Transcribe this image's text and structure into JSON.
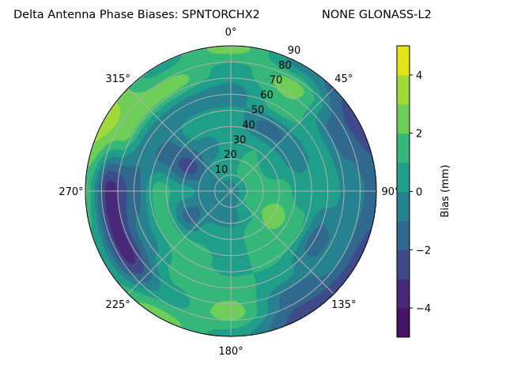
{
  "chart_data": {
    "type": "polar-contour",
    "title_left": "Delta Antenna Phase Biases: SPNTORCHX2",
    "title_right": "NONE GLONASS-L2",
    "angle_direction": "clockwise",
    "zero_location": "north",
    "angle_tick_labels": [
      "0°",
      "45°",
      "90°",
      "135°",
      "180°",
      "225°",
      "270°",
      "315°"
    ],
    "angle_ticks": [
      0,
      45,
      90,
      135,
      180,
      225,
      270,
      315
    ],
    "radial_ticks": [
      10,
      20,
      30,
      40,
      50,
      60,
      70,
      80,
      90
    ],
    "radial_tick_labels": [
      "10",
      "20",
      "30",
      "40",
      "50",
      "60",
      "70",
      "80",
      "90"
    ],
    "rlim": [
      0,
      90
    ],
    "grid": true,
    "colorbar": {
      "label": "Bias (mm)",
      "levels": [
        -5,
        -4,
        -3,
        -2,
        -1,
        0,
        1,
        2,
        3,
        4,
        5
      ],
      "tick_values": [
        -4,
        -2,
        0,
        2,
        4
      ],
      "tick_labels": [
        "−4",
        "−2",
        "0",
        "2",
        "4"
      ],
      "colormap": "viridis",
      "colors": [
        "#471365",
        "#482979",
        "#3e4a89",
        "#31688e",
        "#26828e",
        "#1f9e89",
        "#35b779",
        "#6ece58",
        "#a0da39",
        "#e5e419"
      ]
    },
    "grid_azimuths": [
      0,
      30,
      60,
      90,
      120,
      150,
      180,
      210,
      240,
      270,
      300,
      330
    ],
    "grid_zenith": [
      0,
      15,
      30,
      45,
      60,
      75,
      90
    ],
    "values_by_azimuth": [
      [
        -0.5,
        0.5,
        0.5,
        0.5,
        -0.5,
        0.5,
        2.5
      ],
      [
        -0.5,
        1.5,
        1.0,
        -1.5,
        1.5,
        2.5,
        -0.5
      ],
      [
        -0.5,
        1.5,
        0.5,
        -0.5,
        0.5,
        -1.5,
        -2.5
      ],
      [
        -0.5,
        1.5,
        1.5,
        0.5,
        0.5,
        -0.5,
        -1.5
      ],
      [
        -0.5,
        1.5,
        2.5,
        1.5,
        -1.5,
        -0.5,
        -2.5
      ],
      [
        -0.5,
        0.5,
        1.5,
        1.5,
        0.5,
        -1.5,
        -2.5
      ],
      [
        -0.5,
        -0.5,
        0.5,
        0.5,
        1.5,
        2.5,
        0.5
      ],
      [
        -0.5,
        -0.5,
        0.5,
        1.5,
        1.5,
        0.5,
        2.5
      ],
      [
        -0.5,
        -0.5,
        -1.5,
        1.5,
        -0.5,
        -3.5,
        0.5
      ],
      [
        -0.5,
        -0.5,
        0.5,
        1.5,
        -1.5,
        -3.5,
        1.5
      ],
      [
        -0.5,
        -0.5,
        -2.5,
        -1.5,
        -0.5,
        2.5,
        3.5
      ],
      [
        -0.5,
        0.5,
        -0.5,
        0.5,
        -0.5,
        2.5,
        0.5
      ]
    ]
  }
}
